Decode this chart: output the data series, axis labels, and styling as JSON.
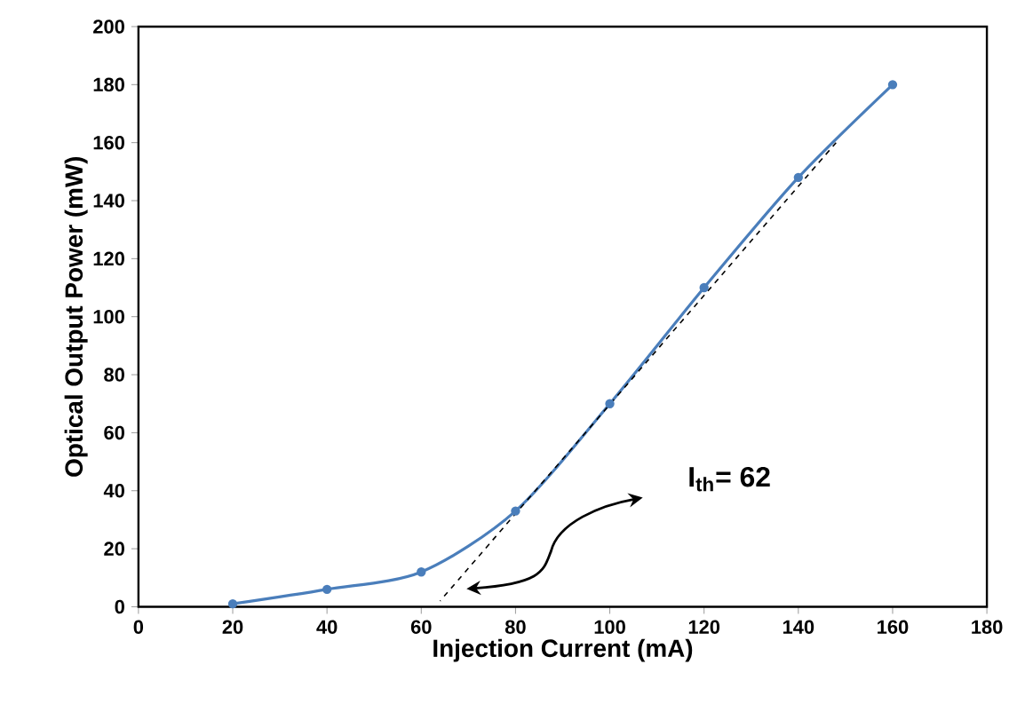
{
  "chart_data": {
    "type": "line",
    "xlabel": "Injection Current (mA)",
    "ylabel": "Optical Output Power (mW)",
    "annotations": [
      "I$_{th}$= 62"
    ],
    "xlim": [
      0,
      180
    ],
    "ylim": [
      0,
      200
    ],
    "xticks": [
      0,
      20,
      40,
      60,
      80,
      100,
      120,
      140,
      160,
      180
    ],
    "yticks": [
      0,
      20,
      40,
      60,
      80,
      100,
      120,
      140,
      160,
      180,
      200
    ],
    "series": [
      {
        "color": "#4a7ebb",
        "marker": "circle",
        "line_style": "solid",
        "x": [
          20,
          40,
          60,
          80,
          100,
          120,
          140,
          160
        ],
        "values": [
          1,
          6,
          12,
          33,
          70,
          110,
          148,
          180
        ]
      },
      {
        "color": "#000000",
        "marker": "none",
        "line_style": "dashed",
        "x": [
          64,
          148
        ],
        "values": [
          2,
          160
        ]
      }
    ]
  }
}
